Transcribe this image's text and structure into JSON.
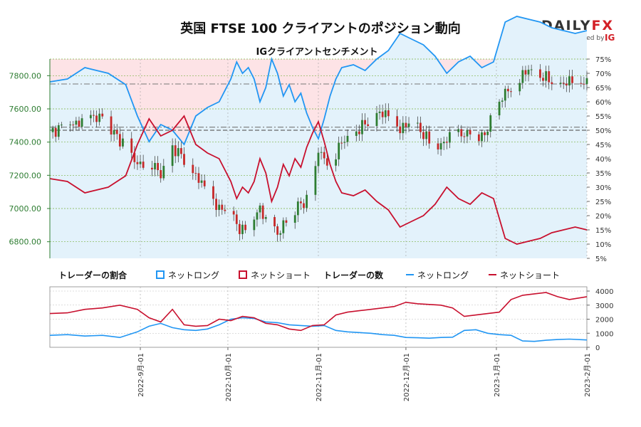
{
  "chart_data": {
    "type": "line",
    "title": "英国 FTSE 100 クライアントのポジション動向",
    "subtitle": "IGクライアントセンチメント",
    "brand": {
      "name_left": "DAILY",
      "name_right": "FX",
      "tagline": "provided by",
      "partner": "IG",
      "colors": {
        "text": "#333333",
        "fx": "#d31f26",
        "ig": "#d31f26"
      }
    },
    "colors": {
      "long": "#2196f3",
      "short": "#c8102e",
      "up": "#2e7d32",
      "down": "#c62828",
      "long_fill": "#e3f2fb",
      "short_fill": "#fde3e6",
      "price_axis": "#2e7d32"
    },
    "price_axis": {
      "min": 6700,
      "max": 7900,
      "ticks": [
        6800,
        7000,
        7200,
        7400,
        7600,
        7800
      ],
      "tick_labels": [
        "6800.00",
        "7000.00",
        "7200.00",
        "7400.00",
        "7600.00",
        "7800.00"
      ]
    },
    "pct_axis": {
      "min": 5,
      "max": 75,
      "tick_labels": [
        "5%",
        "10%",
        "15%",
        "20%",
        "25%",
        "30%",
        "35%",
        "40%",
        "45%",
        "50%",
        "55%",
        "60%",
        "65%",
        "70%",
        "75%"
      ]
    },
    "count_axis": {
      "min": 0,
      "max": 4000,
      "ticks": [
        0,
        1000,
        2000,
        3000,
        4000
      ],
      "tick_labels": [
        "0",
        "1000",
        "2000",
        "3000",
        "4000"
      ]
    },
    "x_axis": {
      "start_day": 0,
      "end_day": 184,
      "date_ticks": [
        {
          "day": 31,
          "label": "2022-9月-01"
        },
        {
          "day": 61,
          "label": "2022-10月-01"
        },
        {
          "day": 92,
          "label": "2022-11月-01"
        },
        {
          "day": 122,
          "label": "2022-12月-01"
        },
        {
          "day": 153,
          "label": "2023-1月-01"
        },
        {
          "day": 184,
          "label": "2023-2月-01"
        }
      ]
    },
    "reference_lines": {
      "price_dashed": [
        7490,
        7750
      ],
      "pct_50": 50
    },
    "long_pct_days": [
      0,
      6,
      12,
      20,
      26,
      30,
      34,
      38,
      42,
      46,
      50,
      54,
      58,
      62,
      64,
      66,
      68,
      70,
      72,
      74,
      76,
      78,
      80,
      82,
      84,
      86,
      88,
      90,
      92,
      94,
      96,
      98,
      100,
      104,
      108,
      112,
      116,
      120,
      124,
      128,
      132,
      136,
      140,
      144,
      148,
      152,
      156,
      160,
      164,
      168,
      172,
      176,
      180,
      184
    ],
    "long_pct_values": [
      67,
      68,
      72,
      70,
      66,
      55,
      46,
      52,
      50,
      45,
      55,
      58,
      60,
      68,
      74,
      70,
      72,
      68,
      60,
      65,
      75,
      70,
      62,
      66,
      60,
      63,
      56,
      51,
      47,
      54,
      62,
      68,
      72,
      73,
      71,
      75,
      78,
      84,
      82,
      80,
      76,
      70,
      74,
      76,
      72,
      74,
      88,
      90,
      89,
      88,
      86,
      85,
      84,
      85
    ],
    "short_pct_values": [
      33,
      32,
      28,
      30,
      34,
      45,
      54,
      48,
      50,
      55,
      45,
      42,
      40,
      32,
      26,
      30,
      28,
      32,
      40,
      35,
      25,
      30,
      38,
      34,
      40,
      37,
      44,
      49,
      53,
      46,
      38,
      32,
      28,
      27,
      29,
      25,
      22,
      16,
      18,
      20,
      24,
      30,
      26,
      24,
      28,
      26,
      12,
      10,
      11,
      12,
      14,
      15,
      16,
      15
    ],
    "price_days": [
      0,
      6,
      12,
      18,
      22,
      26,
      30,
      34,
      38,
      42,
      46,
      50,
      54,
      58,
      62,
      64,
      66,
      68,
      70,
      72,
      74,
      76,
      78,
      80,
      82,
      84,
      86,
      88,
      90,
      92,
      94,
      96,
      98,
      100,
      104,
      108,
      112,
      116,
      120,
      124,
      128,
      132,
      136,
      140,
      144,
      148,
      152,
      156,
      160,
      164,
      168,
      172,
      176,
      180,
      184
    ],
    "price_values": [
      7460,
      7500,
      7530,
      7560,
      7450,
      7380,
      7260,
      7300,
      7200,
      7370,
      7300,
      7200,
      7100,
      7000,
      6980,
      6900,
      6870,
      6860,
      6940,
      7010,
      6920,
      6880,
      6840,
      6910,
      6940,
      6990,
      7030,
      7050,
      7130,
      7350,
      7300,
      7280,
      7330,
      7400,
      7450,
      7510,
      7580,
      7560,
      7480,
      7520,
      7450,
      7350,
      7420,
      7440,
      7460,
      7420,
      7560,
      7700,
      7760,
      7840,
      7800,
      7770,
      7750,
      7780,
      7760
    ],
    "long_count_days": [
      0,
      6,
      12,
      18,
      24,
      30,
      34,
      38,
      42,
      46,
      50,
      54,
      58,
      62,
      66,
      70,
      74,
      78,
      82,
      86,
      90,
      94,
      98,
      102,
      106,
      110,
      114,
      118,
      122,
      126,
      130,
      134,
      138,
      142,
      146,
      150,
      154,
      158,
      162,
      166,
      170,
      174,
      178,
      184
    ],
    "long_count_values": [
      850,
      900,
      800,
      850,
      700,
      1100,
      1500,
      1700,
      1400,
      1250,
      1200,
      1300,
      1600,
      2000,
      2100,
      2050,
      1800,
      1750,
      1600,
      1550,
      1500,
      1550,
      1200,
      1100,
      1050,
      1000,
      900,
      850,
      700,
      680,
      650,
      700,
      720,
      1200,
      1250,
      1000,
      900,
      850,
      450,
      420,
      500,
      550,
      580,
      520
    ],
    "short_count_values": [
      2400,
      2450,
      2700,
      2800,
      3000,
      2700,
      2100,
      1800,
      2700,
      1600,
      1500,
      1550,
      2000,
      1900,
      2200,
      2100,
      1700,
      1600,
      1300,
      1200,
      1550,
      1600,
      2300,
      2500,
      2600,
      2700,
      2800,
      2900,
      3200,
      3100,
      3050,
      3000,
      2800,
      2200,
      2300,
      2400,
      2500,
      3400,
      3700,
      3800,
      3900,
      3600,
      3400,
      3600
    ]
  },
  "legend": {
    "ratio_title": "トレーダーの割合",
    "count_title": "トレーダーの数",
    "net_long": "ネットロング",
    "net_short": "ネットショート"
  }
}
